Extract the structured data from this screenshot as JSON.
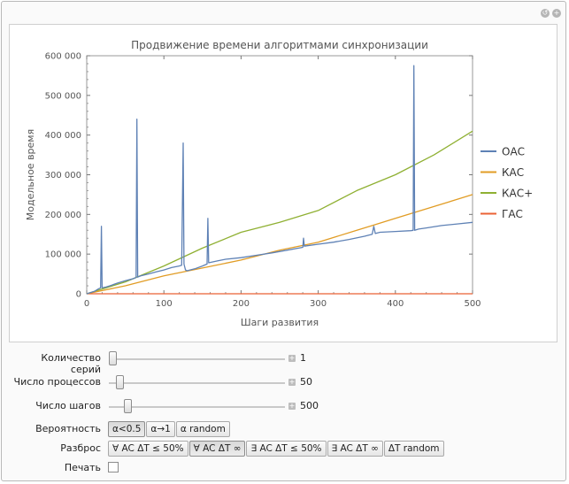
{
  "chart_data": {
    "type": "line",
    "title": "Продвижение времени алгоритмами синхронизации",
    "xlabel": "Шаги развития",
    "ylabel": "Модельное время",
    "xlim": [
      0,
      500
    ],
    "ylim": [
      0,
      600000
    ],
    "xticks": [
      0,
      100,
      200,
      300,
      400,
      500
    ],
    "yticks": [
      0,
      100000,
      200000,
      300000,
      400000,
      500000,
      600000
    ],
    "xtick_labels": [
      "0",
      "100",
      "200",
      "300",
      "400",
      "500"
    ],
    "ytick_labels": [
      "0",
      "100 000",
      "200 000",
      "300 000",
      "400 000",
      "500 000",
      "600 000"
    ],
    "legend_position": "right",
    "series": [
      {
        "name": "ОАС",
        "color": "#5e81b5",
        "x": [
          0,
          10,
          15,
          18,
          19,
          20,
          25,
          30,
          40,
          50,
          60,
          64,
          65,
          66,
          70,
          80,
          90,
          100,
          110,
          120,
          123,
          125,
          126,
          128,
          130,
          140,
          150,
          156,
          157,
          158,
          160,
          170,
          180,
          200,
          220,
          240,
          260,
          280,
          281,
          282,
          300,
          320,
          340,
          360,
          370,
          372,
          374,
          380,
          400,
          420,
          423,
          424,
          425,
          430,
          440,
          460,
          480,
          500
        ],
        "y": [
          0,
          6000,
          12000,
          15000,
          170000,
          15000,
          17000,
          20000,
          27000,
          33000,
          38000,
          41000,
          440000,
          42000,
          45000,
          50000,
          55000,
          60000,
          66000,
          70000,
          72000,
          380000,
          75000,
          60000,
          58000,
          63000,
          70000,
          75000,
          190000,
          78000,
          79000,
          83000,
          87000,
          91000,
          97000,
          103000,
          110000,
          117000,
          140000,
          120000,
          125000,
          130000,
          137000,
          145000,
          150000,
          170000,
          152000,
          155000,
          157000,
          159000,
          160000,
          575000,
          160000,
          163000,
          166000,
          172000,
          176000,
          180000
        ]
      },
      {
        "name": "КАС",
        "color": "#e19c24",
        "x": [
          0,
          50,
          100,
          150,
          200,
          250,
          300,
          350,
          400,
          450,
          500
        ],
        "y": [
          0,
          20000,
          45000,
          65000,
          85000,
          110000,
          130000,
          160000,
          190000,
          220000,
          250000
        ]
      },
      {
        "name": "КАС+",
        "color": "#8fb032",
        "x": [
          0,
          50,
          100,
          150,
          200,
          250,
          300,
          350,
          400,
          450,
          500
        ],
        "y": [
          0,
          30000,
          70000,
          115000,
          155000,
          180000,
          210000,
          260000,
          300000,
          350000,
          410000
        ]
      },
      {
        "name": "ГАС",
        "color": "#eb6235",
        "x": [
          0,
          500
        ],
        "y": [
          0,
          0
        ]
      }
    ]
  },
  "controls": {
    "series_count": {
      "label": "Количество серий",
      "value": "1",
      "fraction": 0.0
    },
    "process_count": {
      "label": "Число процессов",
      "value": "50",
      "fraction": 0.04
    },
    "step_count": {
      "label": "Число шагов",
      "value": "500",
      "fraction": 0.09
    },
    "probability": {
      "label": "Вероятность",
      "options": [
        "α<0.5",
        "α→1",
        "α random"
      ],
      "selected_index": 0
    },
    "spread": {
      "label": "Разброс",
      "options": [
        "∀ AC ΔT ≤ 50%",
        "∀ AC ΔT ∞",
        "∃ AC ΔT ≤ 50%",
        "∃ AC ΔT ∞",
        "ΔT random"
      ],
      "selected_index": 1
    },
    "print": {
      "label": "Печать",
      "checked": false
    }
  }
}
